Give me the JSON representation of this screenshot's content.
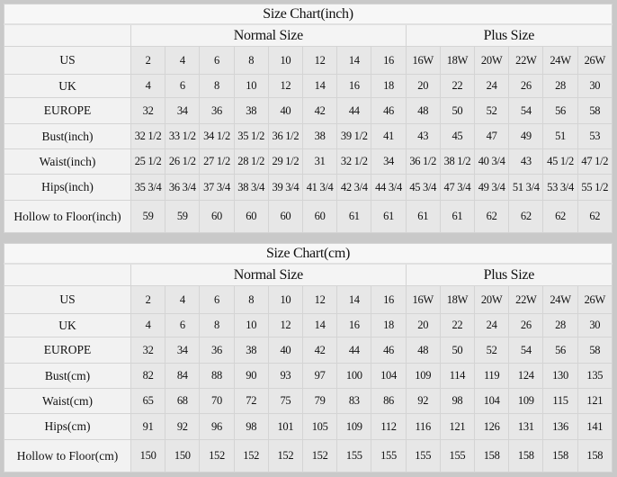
{
  "columns": {
    "normal_label": "Normal Size",
    "plus_label": "Plus Size"
  },
  "inch_chart": {
    "title": "Size Chart(inch)",
    "rows": [
      {
        "label": "US",
        "values": [
          "2",
          "4",
          "6",
          "8",
          "10",
          "12",
          "14",
          "16",
          "16W",
          "18W",
          "20W",
          "22W",
          "24W",
          "26W"
        ]
      },
      {
        "label": "UK",
        "values": [
          "4",
          "6",
          "8",
          "10",
          "12",
          "14",
          "16",
          "18",
          "20",
          "22",
          "24",
          "26",
          "28",
          "30"
        ]
      },
      {
        "label": "EUROPE",
        "values": [
          "32",
          "34",
          "36",
          "38",
          "40",
          "42",
          "44",
          "46",
          "48",
          "50",
          "52",
          "54",
          "56",
          "58"
        ]
      },
      {
        "label": "Bust(inch)",
        "values": [
          "32 1/2",
          "33 1/2",
          "34 1/2",
          "35 1/2",
          "36 1/2",
          "38",
          "39 1/2",
          "41",
          "43",
          "45",
          "47",
          "49",
          "51",
          "53"
        ]
      },
      {
        "label": "Waist(inch)",
        "values": [
          "25 1/2",
          "26 1/2",
          "27 1/2",
          "28 1/2",
          "29 1/2",
          "31",
          "32 1/2",
          "34",
          "36 1/2",
          "38 1/2",
          "40 3/4",
          "43",
          "45 1/2",
          "47 1/2"
        ]
      },
      {
        "label": "Hips(inch)",
        "values": [
          "35 3/4",
          "36 3/4",
          "37 3/4",
          "38 3/4",
          "39 3/4",
          "41 3/4",
          "42 3/4",
          "44 3/4",
          "45 3/4",
          "47 3/4",
          "49 3/4",
          "51 3/4",
          "53 3/4",
          "55 1/2"
        ]
      },
      {
        "label": "Hollow to Floor(inch)",
        "values": [
          "59",
          "59",
          "60",
          "60",
          "60",
          "60",
          "61",
          "61",
          "61",
          "61",
          "62",
          "62",
          "62",
          "62"
        ]
      }
    ]
  },
  "cm_chart": {
    "title": "Size Chart(cm)",
    "rows": [
      {
        "label": "US",
        "values": [
          "2",
          "4",
          "6",
          "8",
          "10",
          "12",
          "14",
          "16",
          "16W",
          "18W",
          "20W",
          "22W",
          "24W",
          "26W"
        ]
      },
      {
        "label": "UK",
        "values": [
          "4",
          "6",
          "8",
          "10",
          "12",
          "14",
          "16",
          "18",
          "20",
          "22",
          "24",
          "26",
          "28",
          "30"
        ]
      },
      {
        "label": "EUROPE",
        "values": [
          "32",
          "34",
          "36",
          "38",
          "40",
          "42",
          "44",
          "46",
          "48",
          "50",
          "52",
          "54",
          "56",
          "58"
        ]
      },
      {
        "label": "Bust(cm)",
        "values": [
          "82",
          "84",
          "88",
          "90",
          "93",
          "97",
          "100",
          "104",
          "109",
          "114",
          "119",
          "124",
          "130",
          "135"
        ]
      },
      {
        "label": "Waist(cm)",
        "values": [
          "65",
          "68",
          "70",
          "72",
          "75",
          "79",
          "83",
          "86",
          "92",
          "98",
          "104",
          "109",
          "115",
          "121"
        ]
      },
      {
        "label": "Hips(cm)",
        "values": [
          "91",
          "92",
          "96",
          "98",
          "101",
          "105",
          "109",
          "112",
          "116",
          "121",
          "126",
          "131",
          "136",
          "141"
        ]
      },
      {
        "label": "Hollow to Floor(cm)",
        "values": [
          "150",
          "150",
          "152",
          "152",
          "152",
          "152",
          "155",
          "155",
          "155",
          "155",
          "158",
          "158",
          "158",
          "158"
        ]
      }
    ]
  }
}
